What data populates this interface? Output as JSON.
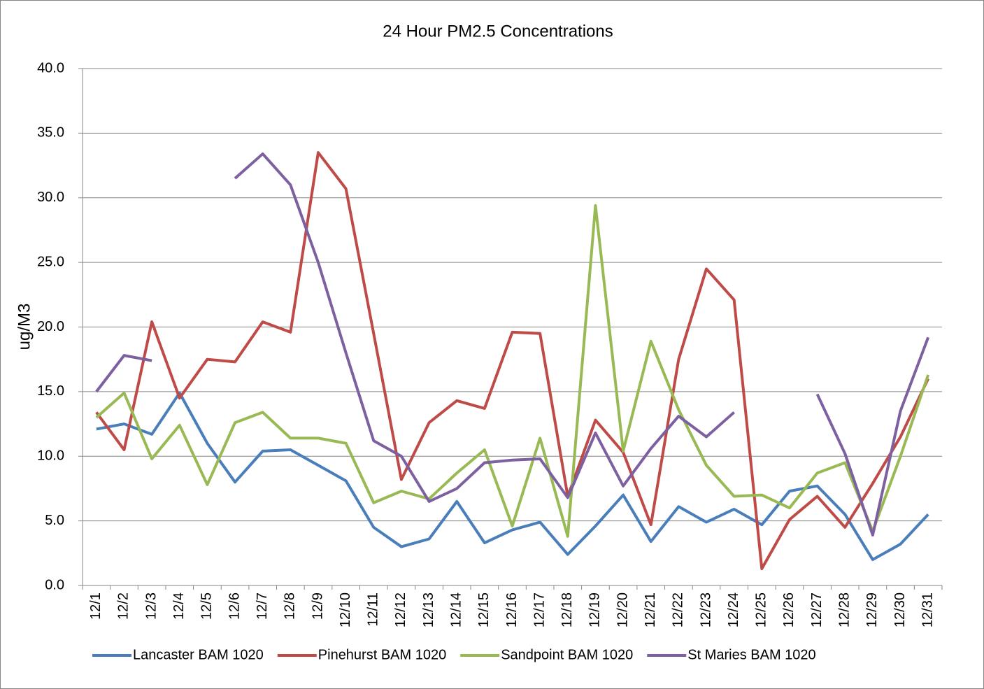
{
  "chart_data": {
    "type": "line",
    "title": "24 Hour PM2.5 Concentrations",
    "y_label": "ug/M3",
    "categories": [
      "12/1",
      "12/2",
      "12/3",
      "12/4",
      "12/5",
      "12/6",
      "12/7",
      "12/8",
      "12/9",
      "12/10",
      "12/11",
      "12/12",
      "12/13",
      "12/14",
      "12/15",
      "12/16",
      "12/17",
      "12/18",
      "12/19",
      "12/20",
      "12/21",
      "12/22",
      "12/23",
      "12/24",
      "12/25",
      "12/26",
      "12/27",
      "12/28",
      "12/29",
      "12/30",
      "12/31"
    ],
    "series": [
      {
        "name": "Lancaster BAM 1020",
        "color": "#4a7ebb",
        "values": [
          12.1,
          12.5,
          11.7,
          14.9,
          11.0,
          8.0,
          10.4,
          10.5,
          9.3,
          8.1,
          4.5,
          3.0,
          3.6,
          6.5,
          3.3,
          4.3,
          4.9,
          2.4,
          4.6,
          7.0,
          3.4,
          6.1,
          4.9,
          5.9,
          4.7,
          7.3,
          7.7,
          5.5,
          2.0,
          3.2,
          5.5
        ]
      },
      {
        "name": "Pinehurst BAM 1020",
        "color": "#be4b48",
        "values": [
          13.4,
          10.5,
          20.4,
          14.5,
          17.5,
          17.3,
          20.4,
          19.6,
          33.5,
          30.7,
          19.5,
          8.2,
          12.6,
          14.3,
          13.7,
          19.6,
          19.5,
          6.9,
          12.8,
          10.3,
          4.7,
          17.5,
          24.5,
          22.1,
          1.3,
          5.1,
          6.9,
          4.5,
          7.9,
          11.5,
          16.0
        ]
      },
      {
        "name": "Sandpoint BAM 1020",
        "color": "#98b954",
        "values": [
          13.0,
          14.9,
          9.8,
          12.4,
          7.8,
          12.6,
          13.4,
          11.4,
          11.4,
          11.0,
          6.4,
          7.3,
          6.7,
          8.7,
          10.5,
          4.6,
          11.4,
          3.8,
          29.4,
          10.4,
          18.9,
          13.6,
          9.3,
          6.9,
          7.0,
          6.0,
          8.7,
          9.5,
          4.2,
          10.0,
          16.3
        ]
      },
      {
        "name": "St Maries BAM 1020",
        "color": "#7d60a0",
        "values": [
          15.0,
          17.8,
          17.4,
          null,
          null,
          31.5,
          33.4,
          31.0,
          25.0,
          18.0,
          11.2,
          10.0,
          6.5,
          7.5,
          9.5,
          9.7,
          9.8,
          6.8,
          11.8,
          7.7,
          10.6,
          13.1,
          11.5,
          13.4,
          null,
          null,
          14.8,
          10.2,
          3.9,
          13.5,
          19.2
        ]
      }
    ],
    "ylim": [
      0,
      40
    ],
    "yticks": [
      {
        "value": 0,
        "label": "0.0"
      },
      {
        "value": 5,
        "label": "5.0"
      },
      {
        "value": 10,
        "label": "10.0"
      },
      {
        "value": 15,
        "label": "15.0"
      },
      {
        "value": 20,
        "label": "20.0"
      },
      {
        "value": 25,
        "label": "25.0"
      },
      {
        "value": 30,
        "label": "30.0"
      },
      {
        "value": 35,
        "label": "35.0"
      },
      {
        "value": 40,
        "label": "40.0"
      }
    ],
    "grid": true,
    "legend": "bottom"
  }
}
